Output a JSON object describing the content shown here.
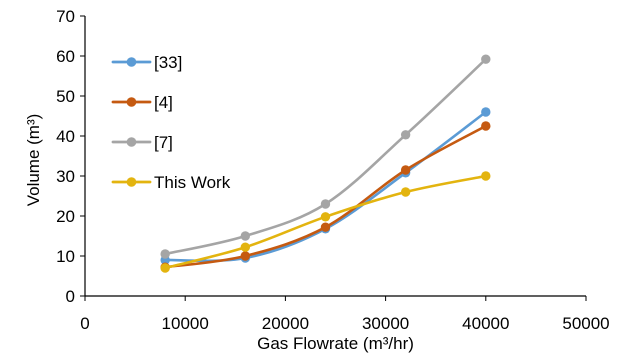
{
  "chart_data": {
    "type": "line",
    "xlabel": "Gas Flowrate (m³/hr)",
    "ylabel": "Volume (m³)",
    "xlim": [
      0,
      50000
    ],
    "ylim": [
      0,
      70
    ],
    "x_ticks": [
      "0",
      "10000",
      "20000",
      "30000",
      "40000",
      "50000"
    ],
    "y_ticks": [
      "0",
      "10",
      "20",
      "30",
      "40",
      "50",
      "60",
      "70"
    ],
    "grid": false,
    "legend_position": "left",
    "series": [
      {
        "name": "[33]",
        "color": "#5B9BD5",
        "x": [
          8000,
          16000,
          24000,
          32000,
          40000
        ],
        "y": [
          9.0,
          9.5,
          16.8,
          30.8,
          46.0
        ]
      },
      {
        "name": "[4]",
        "color": "#C55A11",
        "x": [
          8000,
          16000,
          24000,
          32000,
          40000
        ],
        "y": [
          7.2,
          10.0,
          17.2,
          31.5,
          42.5
        ]
      },
      {
        "name": "[7]",
        "color": "#A5A5A5",
        "x": [
          8000,
          16000,
          24000,
          32000,
          40000
        ],
        "y": [
          10.5,
          15.0,
          23.0,
          40.3,
          59.2
        ]
      },
      {
        "name": "This Work",
        "color": "#E3B40F",
        "x": [
          8000,
          16000,
          24000,
          32000,
          40000
        ],
        "y": [
          7.0,
          12.2,
          19.8,
          26.0,
          30.0
        ]
      }
    ]
  }
}
